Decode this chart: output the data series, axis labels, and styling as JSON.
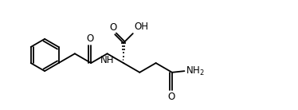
{
  "bg_color": "#ffffff",
  "line_color": "#000000",
  "line_width": 1.3,
  "font_size": 8.5,
  "figsize": [
    3.74,
    1.38
  ],
  "dpi": 100,
  "xlim": [
    -0.3,
    10.8
  ],
  "ylim": [
    -0.2,
    3.8
  ]
}
